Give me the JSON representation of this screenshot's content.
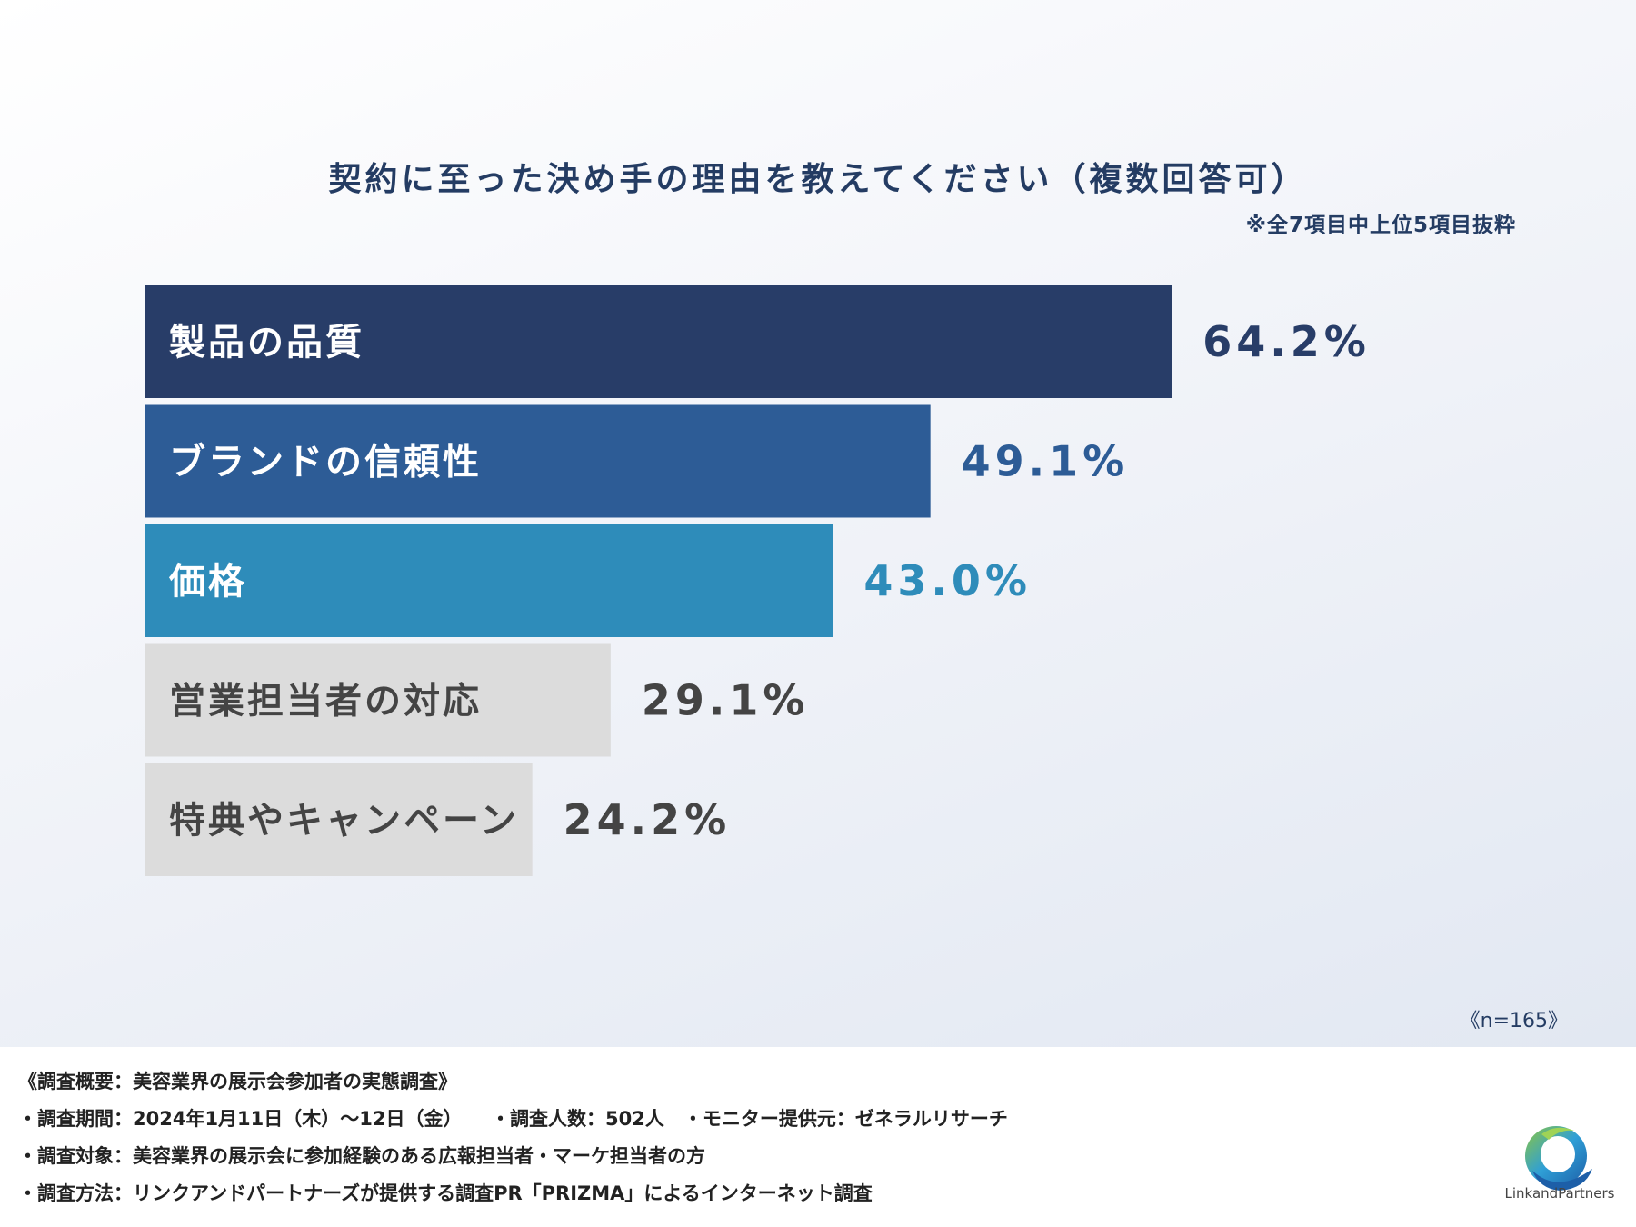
{
  "chart_data": {
    "type": "bar",
    "orientation": "horizontal",
    "title": "契約に至った決め手の理由を教えてください（複数回答可）",
    "subtitle": "※全7項目中上位5項目抜粋",
    "categories": [
      "製品の品質",
      "ブランドの信頼性",
      "価格",
      "営業担当者の対応",
      "特典やキャンペーン"
    ],
    "values": [
      64.2,
      49.1,
      43.0,
      29.1,
      24.2
    ],
    "value_labels": [
      "64.2%",
      "49.1%",
      "43.0%",
      "29.1%",
      "24.2%"
    ],
    "unit": "%",
    "bar_colors": [
      "#283d68",
      "#2d5c96",
      "#2e8cba",
      "#dcdcdc",
      "#dcdcdc"
    ],
    "label_colors": [
      "#ffffff",
      "#ffffff",
      "#ffffff",
      "#444444",
      "#444444"
    ],
    "value_colors": [
      "#283d68",
      "#2d5c96",
      "#2e8cba",
      "#444444",
      "#444444"
    ],
    "xlim": [
      0,
      100
    ],
    "grid": false,
    "legend": "none"
  },
  "sample_note": "《n=165》",
  "footer": {
    "heading": "《調査概要：美容業界の展示会参加者の実態調査》",
    "lines": [
      "・調査期間：2024年1月11日（木）〜12日（金）　　・調査人数：502人　・モニター提供元：ゼネラルリサーチ",
      "・調査対象：美容業界の展示会に参加経験のある広報担当者・マーケ担当者の方",
      "・調査方法：リンクアンドパートナーズが提供する調査PR「PRIZMA」によるインターネット調査"
    ]
  },
  "logo": {
    "text": "LinkandPartners",
    "icon": "link-and-partners-logo-icon"
  }
}
